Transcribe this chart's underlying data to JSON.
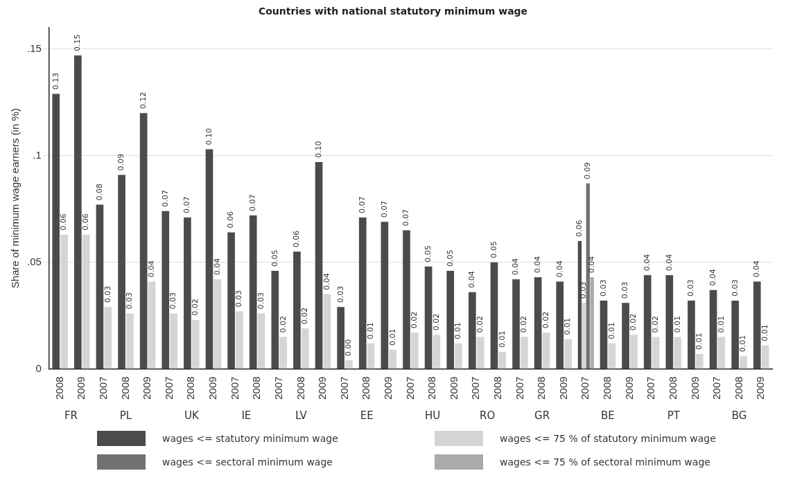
{
  "chart_data": {
    "type": "bar",
    "title": "Countries with national statutory minimum wage",
    "ylabel": "Share of minimum wage earners (in %)",
    "categories": [
      "2008",
      "2009",
      "2007",
      "2008",
      "2009",
      "2007",
      "2008",
      "2009",
      "2007",
      "2008",
      "2007",
      "2008",
      "2009",
      "2007",
      "2008",
      "2009",
      "2007",
      "2008",
      "2009",
      "2007",
      "2008",
      "2007",
      "2008",
      "2009",
      "2007",
      "2008",
      "2009",
      "2007",
      "2008",
      "2009",
      "2007",
      "2008",
      "2009"
    ],
    "annotations": [
      "FR",
      "PL",
      "UK",
      "IE",
      "LV",
      "EE",
      "HU",
      "RO",
      "GR",
      "BE",
      "PT",
      "BG"
    ],
    "series": [
      {
        "name": "wages <= statutory minimum wage",
        "color": "#4a4b4d",
        "values": [
          0.129,
          0.147,
          0.077,
          0.091,
          0.12,
          0.074,
          0.071,
          0.103,
          0.064,
          0.072,
          0.046,
          0.055,
          0.097,
          0.029,
          0.071,
          0.069,
          0.065,
          0.048,
          0.046,
          0.036,
          0.05,
          0.042,
          0.043,
          0.041,
          0.06,
          0.032,
          0.031,
          0.044,
          0.044,
          0.032,
          0.037,
          0.032,
          0.041
        ],
        "value_labels": [
          "0.13",
          "0.15",
          "0.08",
          "0.09",
          "0.12",
          "0.07",
          "0.07",
          "0.10",
          "0.06",
          "0.07",
          "0.05",
          "0.06",
          "0.10",
          "0.03",
          "0.07",
          "0.07",
          "0.07",
          "0.05",
          "0.05",
          "0.04",
          "0.05",
          "0.04",
          "0.04",
          "0.04",
          "0.06",
          "0.03",
          "0.03",
          "0.04",
          "0.04",
          "0.03",
          "0.04",
          "0.03",
          "0.04"
        ]
      },
      {
        "name": "wages <= 75 % of statutory minimum wage",
        "color": "#d4d5d7",
        "values": [
          0.063,
          0.063,
          0.029,
          0.026,
          0.041,
          0.026,
          0.023,
          0.042,
          0.027,
          0.026,
          0.015,
          0.019,
          0.035,
          0.004,
          0.012,
          0.009,
          0.017,
          0.016,
          0.012,
          0.015,
          0.008,
          0.015,
          0.017,
          0.014,
          0.031,
          0.012,
          0.016,
          0.015,
          0.015,
          0.007,
          0.015,
          0.006,
          0.011
        ],
        "value_labels": [
          "0.06",
          "0.06",
          "0.03",
          "0.03",
          "0.04",
          "0.03",
          "0.02",
          "0.04",
          "0.03",
          "0.03",
          "0.02",
          "0.02",
          "0.04",
          "0.00",
          "0.01",
          "0.01",
          "0.02",
          "0.02",
          "0.01",
          "0.02",
          "0.01",
          "0.02",
          "0.02",
          "0.01",
          "0.03",
          "0.01",
          "0.02",
          "0.02",
          "0.01",
          "0.01",
          "0.01",
          "0.01",
          "0.01"
        ]
      },
      {
        "name": "wages <= sectoral minimum wage",
        "color": "#707174",
        "values": [
          null,
          null,
          null,
          null,
          null,
          null,
          null,
          null,
          null,
          null,
          null,
          null,
          null,
          null,
          null,
          null,
          null,
          null,
          null,
          null,
          null,
          null,
          null,
          null,
          0.087,
          null,
          null,
          null,
          null,
          null,
          null,
          null,
          null
        ],
        "value_labels": [
          null,
          null,
          null,
          null,
          null,
          null,
          null,
          null,
          null,
          null,
          null,
          null,
          null,
          null,
          null,
          null,
          null,
          null,
          null,
          null,
          null,
          null,
          null,
          null,
          "0.09",
          null,
          null,
          null,
          null,
          null,
          null,
          null,
          null
        ]
      },
      {
        "name": "wages <= 75 % of sectoral minimum wage",
        "color": "#a9aaad",
        "values": [
          null,
          null,
          null,
          null,
          null,
          null,
          null,
          null,
          null,
          null,
          null,
          null,
          null,
          null,
          null,
          null,
          null,
          null,
          null,
          null,
          null,
          null,
          null,
          null,
          0.043,
          null,
          null,
          null,
          null,
          null,
          null,
          null,
          null
        ],
        "value_labels": [
          null,
          null,
          null,
          null,
          null,
          null,
          null,
          null,
          null,
          null,
          null,
          null,
          null,
          null,
          null,
          null,
          null,
          null,
          null,
          null,
          null,
          null,
          null,
          null,
          "0.04",
          null,
          null,
          null,
          null,
          null,
          null,
          null,
          null
        ]
      }
    ],
    "ylim": [
      0,
      0.16
    ],
    "yticks": [
      {
        "value": 0,
        "label": "0"
      },
      {
        "value": 0.05,
        "label": ".05"
      },
      {
        "value": 0.1,
        "label": ".1"
      },
      {
        "value": 0.15,
        "label": ".15"
      }
    ],
    "grid": "y",
    "legend": "bottom"
  }
}
